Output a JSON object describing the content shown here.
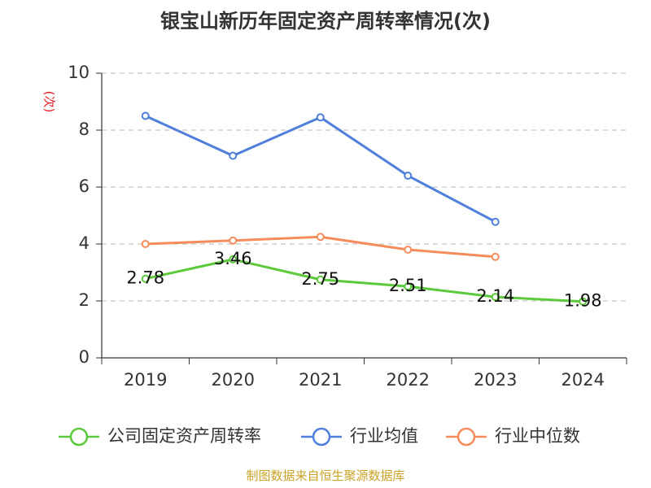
{
  "chart_data": {
    "type": "line",
    "title": "银宝山新历年固定资产周转率情况(次)",
    "ylabel": "(次)",
    "xlabel": "",
    "categories": [
      "2019",
      "2020",
      "2021",
      "2022",
      "2023",
      "2024"
    ],
    "ylim": [
      0,
      10
    ],
    "yticks": [
      0,
      2,
      4,
      6,
      8,
      10
    ],
    "grid": true,
    "legend_position": "bottom",
    "series": [
      {
        "name": "公司固定资产周转率",
        "color": "#5cc93b",
        "values": [
          2.78,
          3.46,
          2.75,
          2.51,
          2.14,
          1.98
        ],
        "labels": [
          "2.78",
          "3.46",
          "2.75",
          "2.51",
          "2.14",
          "1.98"
        ]
      },
      {
        "name": "行业均值",
        "color": "#4f7fdb",
        "values": [
          8.5,
          7.1,
          8.45,
          6.4,
          4.78,
          null
        ]
      },
      {
        "name": "行业中位数",
        "color": "#f68c5b",
        "values": [
          4.0,
          4.12,
          4.25,
          3.8,
          3.55,
          null
        ]
      }
    ],
    "source": "制图数据来自恒生聚源数据库"
  }
}
